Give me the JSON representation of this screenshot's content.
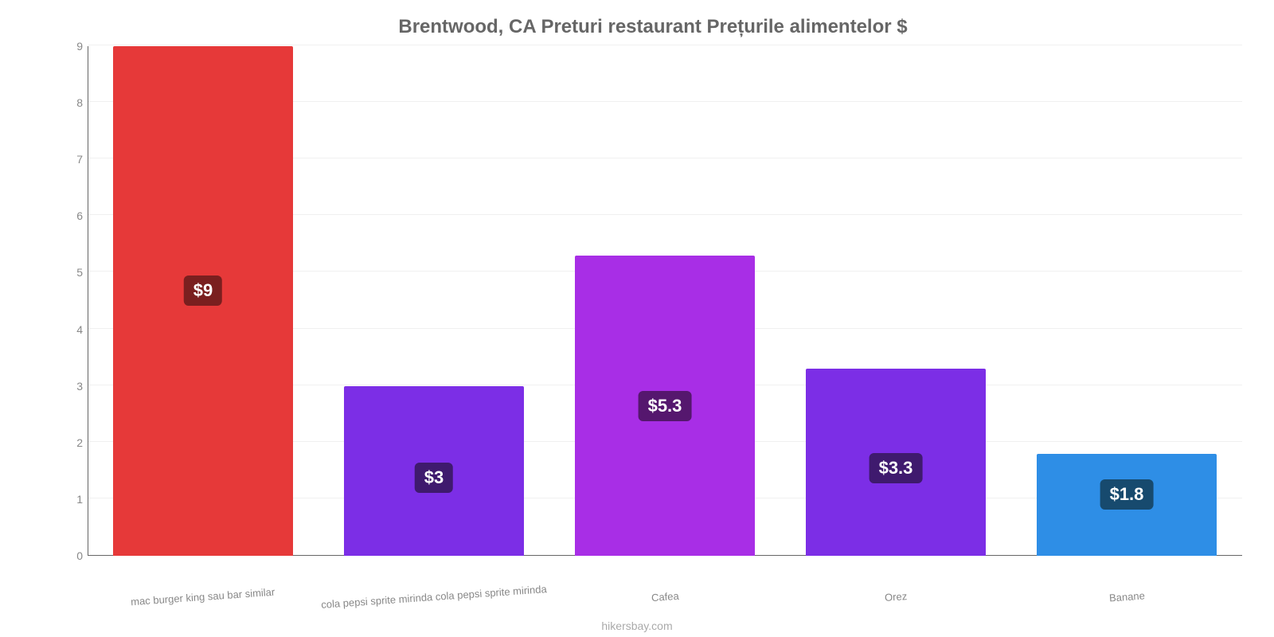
{
  "chart": {
    "type": "bar",
    "title": "Brentwood, CA Preturi restaurant Prețurile alimentelor $",
    "title_fontsize": 24,
    "title_color": "#666666",
    "background_color": "#ffffff",
    "grid_color": "#f0f0f0",
    "axis_color": "#666666",
    "tick_color": "#888888",
    "tick_fontsize": 14,
    "xlabel_fontsize": 13,
    "ylim": [
      0,
      9
    ],
    "ytick_step": 1,
    "yticks": [
      "0",
      "1",
      "2",
      "3",
      "4",
      "5",
      "6",
      "7",
      "8",
      "9"
    ],
    "bar_width_pct": 78,
    "value_label_fontsize": 22,
    "value_label_color": "#ffffff",
    "value_label_radius": 6,
    "categories": [
      "mac burger king sau bar similar",
      "cola pepsi sprite mirinda cola pepsi sprite mirinda",
      "Cafea",
      "Orez",
      "Banane"
    ],
    "values": [
      9,
      3,
      5.3,
      3.3,
      1.8
    ],
    "value_labels": [
      "$9",
      "$3",
      "$5.3",
      "$3.3",
      "$1.8"
    ],
    "bar_colors": [
      "#e63939",
      "#7c2ee6",
      "#a82ee6",
      "#7c2ee6",
      "#2e8ee6"
    ],
    "label_bg_colors": [
      "#7a1f1f",
      "#3f1a6e",
      "#55176e",
      "#3f1a6e",
      "#174a6e"
    ],
    "attribution": "hikersbay.com",
    "attribution_color": "#aaaaaa",
    "attribution_fontsize": 14
  }
}
